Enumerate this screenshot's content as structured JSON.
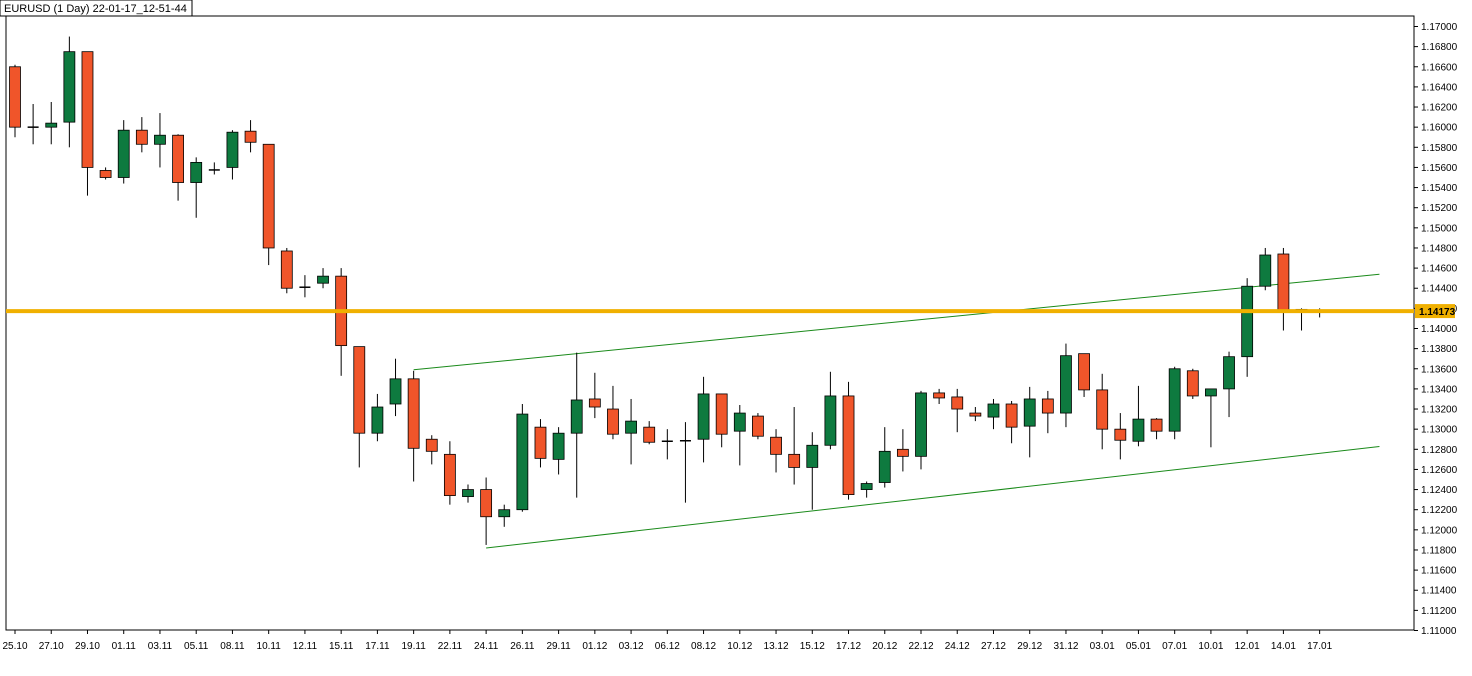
{
  "chart_data": {
    "type": "candlestick",
    "title": "EURUSD (1 Day) 22-01-17_12-51-44",
    "ylim": [
      1.11,
      1.17
    ],
    "y_ticks": [
      "1.17000",
      "1.16800",
      "1.16600",
      "1.16400",
      "1.16200",
      "1.16000",
      "1.15800",
      "1.15600",
      "1.15400",
      "1.15200",
      "1.15000",
      "1.14800",
      "1.14600",
      "1.14400",
      "1.14200",
      "1.14000",
      "1.13800",
      "1.13600",
      "1.13400",
      "1.13200",
      "1.13000",
      "1.12800",
      "1.12600",
      "1.12400",
      "1.12200",
      "1.12000",
      "1.11800",
      "1.11600",
      "1.11400",
      "1.11200",
      "1.11000"
    ],
    "x_ticks": [
      "25.10",
      "27.10",
      "29.10",
      "01.11",
      "03.11",
      "05.11",
      "08.11",
      "10.11",
      "12.11",
      "15.11",
      "17.11",
      "19.11",
      "22.11",
      "24.11",
      "26.11",
      "29.11",
      "01.12",
      "03.12",
      "06.12",
      "08.12",
      "10.12",
      "13.12",
      "15.12",
      "17.12",
      "20.12",
      "22.12",
      "24.12",
      "27.12",
      "29.12",
      "31.12",
      "03.01",
      "05.01",
      "07.01",
      "10.01",
      "12.01",
      "14.01",
      "17.01"
    ],
    "current_price": 1.14173,
    "current_price_label": "1.14173",
    "colors": {
      "up": "#0e7a3f",
      "down": "#f0552a",
      "wick": "#000000",
      "price_line": "#f0b000",
      "price_label_bg": "#f0b000",
      "trendline": "#1a8a1a"
    },
    "candles": [
      {
        "o": 1.166,
        "h": 1.1662,
        "l": 1.159,
        "c": 1.16
      },
      {
        "o": 1.16,
        "h": 1.1623,
        "l": 1.1583,
        "c": 1.16
      },
      {
        "o": 1.16,
        "h": 1.1625,
        "l": 1.1583,
        "c": 1.1604
      },
      {
        "o": 1.1605,
        "h": 1.169,
        "l": 1.158,
        "c": 1.1675
      },
      {
        "o": 1.1675,
        "h": 1.1675,
        "l": 1.1532,
        "c": 1.156
      },
      {
        "o": 1.1557,
        "h": 1.156,
        "l": 1.1548,
        "c": 1.155
      },
      {
        "o": 1.155,
        "h": 1.1607,
        "l": 1.1544,
        "c": 1.1597
      },
      {
        "o": 1.1597,
        "h": 1.161,
        "l": 1.1575,
        "c": 1.1583
      },
      {
        "o": 1.1583,
        "h": 1.1614,
        "l": 1.156,
        "c": 1.1592
      },
      {
        "o": 1.1592,
        "h": 1.1593,
        "l": 1.1527,
        "c": 1.1545
      },
      {
        "o": 1.1545,
        "h": 1.157,
        "l": 1.151,
        "c": 1.1565
      },
      {
        "o": 1.1557,
        "h": 1.1565,
        "l": 1.1553,
        "c": 1.1558
      },
      {
        "o": 1.156,
        "h": 1.1597,
        "l": 1.1548,
        "c": 1.1595
      },
      {
        "o": 1.1596,
        "h": 1.1607,
        "l": 1.1575,
        "c": 1.1585
      },
      {
        "o": 1.1583,
        "h": 1.1583,
        "l": 1.1463,
        "c": 1.148
      },
      {
        "o": 1.1477,
        "h": 1.148,
        "l": 1.1435,
        "c": 1.144
      },
      {
        "o": 1.1441,
        "h": 1.1453,
        "l": 1.1431,
        "c": 1.1441
      },
      {
        "o": 1.1445,
        "h": 1.146,
        "l": 1.144,
        "c": 1.1452
      },
      {
        "o": 1.1452,
        "h": 1.146,
        "l": 1.1353,
        "c": 1.1383
      },
      {
        "o": 1.1382,
        "h": 1.1382,
        "l": 1.1262,
        "c": 1.1296
      },
      {
        "o": 1.1296,
        "h": 1.1335,
        "l": 1.1288,
        "c": 1.1322
      },
      {
        "o": 1.1325,
        "h": 1.137,
        "l": 1.1313,
        "c": 1.135
      },
      {
        "o": 1.135,
        "h": 1.1358,
        "l": 1.1248,
        "c": 1.1281
      },
      {
        "o": 1.129,
        "h": 1.1294,
        "l": 1.1265,
        "c": 1.1278
      },
      {
        "o": 1.1275,
        "h": 1.1288,
        "l": 1.1225,
        "c": 1.1234
      },
      {
        "o": 1.1233,
        "h": 1.1245,
        "l": 1.1227,
        "c": 1.124
      },
      {
        "o": 1.124,
        "h": 1.1252,
        "l": 1.1185,
        "c": 1.1213
      },
      {
        "o": 1.1213,
        "h": 1.1225,
        "l": 1.1203,
        "c": 1.122
      },
      {
        "o": 1.122,
        "h": 1.1325,
        "l": 1.1218,
        "c": 1.1315
      },
      {
        "o": 1.1302,
        "h": 1.131,
        "l": 1.1262,
        "c": 1.1271
      },
      {
        "o": 1.127,
        "h": 1.1302,
        "l": 1.1255,
        "c": 1.1296
      },
      {
        "o": 1.1296,
        "h": 1.1376,
        "l": 1.1232,
        "c": 1.1329
      },
      {
        "o": 1.133,
        "h": 1.1356,
        "l": 1.1311,
        "c": 1.1322
      },
      {
        "o": 1.132,
        "h": 1.1343,
        "l": 1.129,
        "c": 1.1295
      },
      {
        "o": 1.1296,
        "h": 1.133,
        "l": 1.1265,
        "c": 1.1308
      },
      {
        "o": 1.1302,
        "h": 1.1308,
        "l": 1.1285,
        "c": 1.1287
      },
      {
        "o": 1.1288,
        "h": 1.13,
        "l": 1.127,
        "c": 1.1288
      },
      {
        "o": 1.1288,
        "h": 1.1307,
        "l": 1.1227,
        "c": 1.1289
      },
      {
        "o": 1.129,
        "h": 1.1352,
        "l": 1.1267,
        "c": 1.1335
      },
      {
        "o": 1.1335,
        "h": 1.1335,
        "l": 1.1282,
        "c": 1.1295
      },
      {
        "o": 1.1298,
        "h": 1.1324,
        "l": 1.1264,
        "c": 1.1316
      },
      {
        "o": 1.1313,
        "h": 1.1316,
        "l": 1.129,
        "c": 1.1293
      },
      {
        "o": 1.1292,
        "h": 1.13,
        "l": 1.1257,
        "c": 1.1275
      },
      {
        "o": 1.1275,
        "h": 1.1322,
        "l": 1.1245,
        "c": 1.1262
      },
      {
        "o": 1.1262,
        "h": 1.1297,
        "l": 1.122,
        "c": 1.1284
      },
      {
        "o": 1.1284,
        "h": 1.1357,
        "l": 1.128,
        "c": 1.1333
      },
      {
        "o": 1.1333,
        "h": 1.1347,
        "l": 1.123,
        "c": 1.1235
      },
      {
        "o": 1.124,
        "h": 1.1248,
        "l": 1.1232,
        "c": 1.1246
      },
      {
        "o": 1.1247,
        "h": 1.1302,
        "l": 1.1242,
        "c": 1.1278
      },
      {
        "o": 1.128,
        "h": 1.13,
        "l": 1.1258,
        "c": 1.1273
      },
      {
        "o": 1.1273,
        "h": 1.1338,
        "l": 1.126,
        "c": 1.1336
      },
      {
        "o": 1.1336,
        "h": 1.134,
        "l": 1.1325,
        "c": 1.1331
      },
      {
        "o": 1.1332,
        "h": 1.134,
        "l": 1.1297,
        "c": 1.132
      },
      {
        "o": 1.1316,
        "h": 1.1322,
        "l": 1.1308,
        "c": 1.1313
      },
      {
        "o": 1.1312,
        "h": 1.133,
        "l": 1.13,
        "c": 1.1325
      },
      {
        "o": 1.1325,
        "h": 1.1328,
        "l": 1.1286,
        "c": 1.1302
      },
      {
        "o": 1.1303,
        "h": 1.1342,
        "l": 1.1272,
        "c": 1.133
      },
      {
        "o": 1.133,
        "h": 1.1338,
        "l": 1.1296,
        "c": 1.1316
      },
      {
        "o": 1.1316,
        "h": 1.1385,
        "l": 1.1302,
        "c": 1.1373
      },
      {
        "o": 1.1375,
        "h": 1.1375,
        "l": 1.1332,
        "c": 1.1339
      },
      {
        "o": 1.1339,
        "h": 1.1355,
        "l": 1.128,
        "c": 1.13
      },
      {
        "o": 1.13,
        "h": 1.1316,
        "l": 1.127,
        "c": 1.1289
      },
      {
        "o": 1.1288,
        "h": 1.1343,
        "l": 1.1283,
        "c": 1.131
      },
      {
        "o": 1.131,
        "h": 1.1311,
        "l": 1.129,
        "c": 1.1298
      },
      {
        "o": 1.1298,
        "h": 1.1362,
        "l": 1.129,
        "c": 1.136
      },
      {
        "o": 1.1358,
        "h": 1.136,
        "l": 1.133,
        "c": 1.1333
      },
      {
        "o": 1.1333,
        "h": 1.134,
        "l": 1.1282,
        "c": 1.134
      },
      {
        "o": 1.134,
        "h": 1.1377,
        "l": 1.1312,
        "c": 1.1372
      },
      {
        "o": 1.1372,
        "h": 1.145,
        "l": 1.1352,
        "c": 1.1442
      },
      {
        "o": 1.1442,
        "h": 1.148,
        "l": 1.1438,
        "c": 1.1473
      },
      {
        "o": 1.1474,
        "h": 1.148,
        "l": 1.1398,
        "c": 1.1416
      },
      {
        "o": 1.1416,
        "h": 1.142,
        "l": 1.1398,
        "c": 1.1419
      },
      {
        "o": 1.1418,
        "h": 1.142,
        "l": 1.1411,
        "c": 1.1417
      }
    ],
    "trendlines": [
      {
        "from": {
          "x": "19.11",
          "y": 1.1359
        },
        "to": {
          "x": "17.01",
          "y": 1.1448
        }
      },
      {
        "from": {
          "x": "24.11",
          "y": 1.1182
        },
        "to": {
          "x": "17.01",
          "y": 1.1276
        }
      }
    ]
  }
}
